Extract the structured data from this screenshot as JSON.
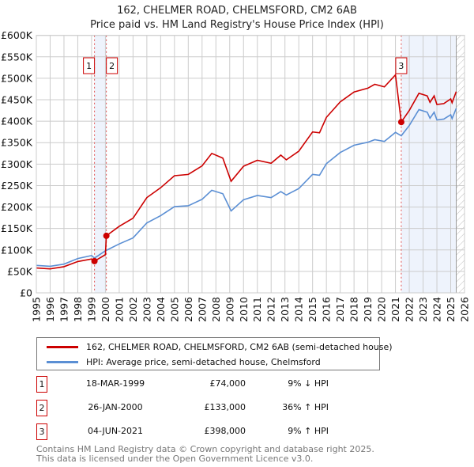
{
  "chart_data": {
    "type": "line",
    "title": "162, CHELMER ROAD, CHELMSFORD, CM2 6AB",
    "subtitle": "Price paid vs. HM Land Registry's House Price Index (HPI)",
    "xlim": [
      1995,
      2026
    ],
    "ylim": [
      0,
      600000
    ],
    "grid": true,
    "y_ticks": [
      {
        "v": 0,
        "label": "£0"
      },
      {
        "v": 50000,
        "label": "£50K"
      },
      {
        "v": 100000,
        "label": "£100K"
      },
      {
        "v": 150000,
        "label": "£150K"
      },
      {
        "v": 200000,
        "label": "£200K"
      },
      {
        "v": 250000,
        "label": "£250K"
      },
      {
        "v": 300000,
        "label": "£300K"
      },
      {
        "v": 350000,
        "label": "£350K"
      },
      {
        "v": 400000,
        "label": "£400K"
      },
      {
        "v": 450000,
        "label": "£450K"
      },
      {
        "v": 500000,
        "label": "£500K"
      },
      {
        "v": 550000,
        "label": "£550K"
      },
      {
        "v": 600000,
        "label": "£600K"
      }
    ],
    "x_ticks": [
      "1995",
      "1996",
      "1997",
      "1998",
      "1999",
      "2000",
      "2001",
      "2002",
      "2003",
      "2004",
      "2005",
      "2006",
      "2007",
      "2008",
      "2009",
      "2010",
      "2011",
      "2012",
      "2013",
      "2014",
      "2015",
      "2016",
      "2017",
      "2018",
      "2019",
      "2020",
      "2021",
      "2022",
      "2023",
      "2024",
      "2025",
      "2026"
    ],
    "shaded_ranges": [
      [
        1999.21,
        2000.07
      ],
      [
        2021.42,
        2025.4
      ]
    ],
    "forecast_start": 2025.4,
    "series": [
      {
        "name": "162, CHELMER ROAD, CHELMSFORD, CM2 6AB (semi-detached house)",
        "color": "#cc0000",
        "points": [
          [
            1995,
            58
          ],
          [
            1996,
            56
          ],
          [
            1997,
            61
          ],
          [
            1998,
            73
          ],
          [
            1999,
            79
          ],
          [
            1999.21,
            74
          ],
          [
            2000.0,
            89
          ],
          [
            2000.07,
            133
          ],
          [
            2001,
            155
          ],
          [
            2002,
            174
          ],
          [
            2003,
            222
          ],
          [
            2004,
            245
          ],
          [
            2005,
            273
          ],
          [
            2006,
            276
          ],
          [
            2007,
            296
          ],
          [
            2007.7,
            325
          ],
          [
            2008.5,
            314
          ],
          [
            2009.1,
            260
          ],
          [
            2010,
            295
          ],
          [
            2011,
            309
          ],
          [
            2012,
            302
          ],
          [
            2012.7,
            321
          ],
          [
            2013.1,
            310
          ],
          [
            2014,
            330
          ],
          [
            2015,
            375
          ],
          [
            2015.5,
            373
          ],
          [
            2016,
            409
          ],
          [
            2017,
            445
          ],
          [
            2018,
            468
          ],
          [
            2019,
            477
          ],
          [
            2019.5,
            486
          ],
          [
            2020.2,
            480
          ],
          [
            2021,
            508
          ],
          [
            2021.42,
            398
          ],
          [
            2022,
            425
          ],
          [
            2022.7,
            465
          ],
          [
            2023.3,
            459
          ],
          [
            2023.5,
            444
          ],
          [
            2023.8,
            459
          ],
          [
            2024,
            439
          ],
          [
            2024.5,
            441
          ],
          [
            2025,
            452
          ],
          [
            2025.1,
            443
          ],
          [
            2025.4,
            469
          ]
        ]
      },
      {
        "name": "HPI: Average price, semi-detached house, Chelmsford",
        "color": "#5b8fd4",
        "points": [
          [
            1995,
            64
          ],
          [
            1996,
            62
          ],
          [
            1997,
            67
          ],
          [
            1998,
            80
          ],
          [
            1999,
            87
          ],
          [
            1999.21,
            81
          ],
          [
            2000,
            98
          ],
          [
            2001,
            114
          ],
          [
            2002,
            128
          ],
          [
            2003,
            163
          ],
          [
            2004,
            180
          ],
          [
            2005,
            201
          ],
          [
            2006,
            203
          ],
          [
            2007,
            218
          ],
          [
            2007.7,
            239
          ],
          [
            2008.5,
            231
          ],
          [
            2009.1,
            191
          ],
          [
            2010,
            217
          ],
          [
            2011,
            227
          ],
          [
            2012,
            222
          ],
          [
            2012.7,
            236
          ],
          [
            2013.1,
            228
          ],
          [
            2014,
            243
          ],
          [
            2015,
            276
          ],
          [
            2015.5,
            274
          ],
          [
            2016,
            301
          ],
          [
            2017,
            327
          ],
          [
            2018,
            344
          ],
          [
            2019,
            351
          ],
          [
            2019.5,
            357
          ],
          [
            2020.2,
            353
          ],
          [
            2021,
            374
          ],
          [
            2021.42,
            366
          ],
          [
            2022,
            390
          ],
          [
            2022.7,
            427
          ],
          [
            2023.3,
            421
          ],
          [
            2023.5,
            407
          ],
          [
            2023.8,
            421
          ],
          [
            2024,
            403
          ],
          [
            2024.5,
            405
          ],
          [
            2025,
            415
          ],
          [
            2025.1,
            406
          ],
          [
            2025.4,
            430
          ]
        ]
      }
    ],
    "point_units": "thousands GBP",
    "sales": [
      {
        "id": "1",
        "x": 1999.21,
        "value": 74000
      },
      {
        "id": "2",
        "x": 2000.07,
        "value": 133000
      },
      {
        "id": "3",
        "x": 2021.42,
        "value": 398000
      }
    ]
  },
  "legend": {
    "property": "162, CHELMER ROAD, CHELMSFORD, CM2 6AB (semi-detached house)",
    "hpi": "HPI: Average price, semi-detached house, Chelmsford"
  },
  "transactions": [
    {
      "id": "1",
      "date": "18-MAR-1999",
      "price": "£74,000",
      "delta": "9% ↓ HPI"
    },
    {
      "id": "2",
      "date": "26-JAN-2000",
      "price": "£133,000",
      "delta": "36% ↑ HPI"
    },
    {
      "id": "3",
      "date": "04-JUN-2021",
      "price": "£398,000",
      "delta": "9% ↑ HPI"
    }
  ],
  "footer": {
    "line1": "Contains HM Land Registry data © Crown copyright and database right 2025.",
    "line2": "This data is licensed under the Open Government Licence v3.0."
  }
}
